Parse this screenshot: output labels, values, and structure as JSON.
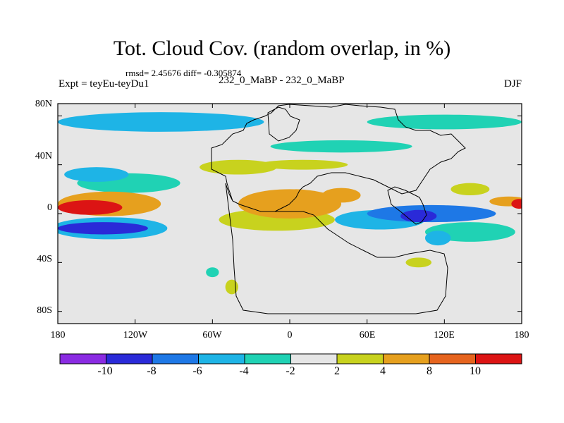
{
  "chart_data": {
    "type": "heatmap",
    "title": "Tot. Cloud Cov. (random overlap, in %)",
    "stats_text": "rmsd= 2.45676 diff= -0.305874",
    "left_label": "Expt = teyEu-teyDu1",
    "center_label": "232_0_MaBP - 232_0_MaBP",
    "right_label": "DJF",
    "x_ticks": [
      "180",
      "120W",
      "60W",
      "0",
      "60E",
      "120E",
      "180"
    ],
    "y_ticks": [
      "80N",
      "40N",
      "0",
      "40S",
      "80S"
    ],
    "xlim": [
      -180,
      180
    ],
    "ylim": [
      -90,
      90
    ],
    "colorbar": {
      "levels": [
        "-10",
        "-8",
        "-6",
        "-4",
        "-2",
        "2",
        "4",
        "8",
        "10"
      ],
      "colors": [
        "#8a2be2",
        "#2a2ad8",
        "#1e78e6",
        "#1eb4e6",
        "#20d2b4",
        "#e6e6e6",
        "#c8d21e",
        "#e6a01e",
        "#e6641e",
        "#dc1414"
      ]
    },
    "anomalies": [
      {
        "lon": -155,
        "lat": 5,
        "rx": 25,
        "ry": 6,
        "value": 10
      },
      {
        "lon": -140,
        "lat": 8,
        "rx": 40,
        "ry": 10,
        "value": 5
      },
      {
        "lon": -145,
        "lat": -12,
        "rx": 35,
        "ry": 5,
        "value": -8
      },
      {
        "lon": -140,
        "lat": -12,
        "rx": 45,
        "ry": 9,
        "value": -5
      },
      {
        "lon": -100,
        "lat": 75,
        "rx": 80,
        "ry": 8,
        "value": -4
      },
      {
        "lon": -150,
        "lat": 32,
        "rx": 25,
        "ry": 6,
        "value": -4
      },
      {
        "lon": -125,
        "lat": 25,
        "rx": 40,
        "ry": 8,
        "value": -3
      },
      {
        "lon": -40,
        "lat": 38,
        "rx": 30,
        "ry": 6,
        "value": 3
      },
      {
        "lon": 10,
        "lat": 40,
        "rx": 35,
        "ry": 4,
        "value": 3
      },
      {
        "lon": 0,
        "lat": 8,
        "rx": 40,
        "ry": 12,
        "value": 4
      },
      {
        "lon": 5,
        "lat": 12,
        "rx": 18,
        "ry": 8,
        "value": 6
      },
      {
        "lon": -10,
        "lat": -5,
        "rx": 45,
        "ry": 9,
        "value": 3
      },
      {
        "lon": 40,
        "lat": 15,
        "rx": 15,
        "ry": 6,
        "value": 5
      },
      {
        "lon": 70,
        "lat": -5,
        "rx": 35,
        "ry": 8,
        "value": -4
      },
      {
        "lon": 110,
        "lat": 0,
        "rx": 50,
        "ry": 7,
        "value": -6
      },
      {
        "lon": 100,
        "lat": -2,
        "rx": 14,
        "ry": 5,
        "value": -8
      },
      {
        "lon": 140,
        "lat": -15,
        "rx": 35,
        "ry": 8,
        "value": -3
      },
      {
        "lon": 115,
        "lat": -20,
        "rx": 10,
        "ry": 6,
        "value": -5
      },
      {
        "lon": 40,
        "lat": 55,
        "rx": 55,
        "ry": 5,
        "value": -3
      },
      {
        "lon": 120,
        "lat": 75,
        "rx": 60,
        "ry": 6,
        "value": -3
      },
      {
        "lon": 140,
        "lat": 20,
        "rx": 15,
        "ry": 5,
        "value": 3
      },
      {
        "lon": 170,
        "lat": 10,
        "rx": 15,
        "ry": 4,
        "value": 6
      },
      {
        "lon": 178,
        "lat": 8,
        "rx": 6,
        "ry": 4,
        "value": 10
      },
      {
        "lon": 100,
        "lat": -40,
        "rx": 10,
        "ry": 4,
        "value": 3
      },
      {
        "lon": -60,
        "lat": -48,
        "rx": 5,
        "ry": 4,
        "value": -3
      },
      {
        "lon": -45,
        "lat": -60,
        "rx": 5,
        "ry": 6,
        "value": 3
      }
    ]
  }
}
